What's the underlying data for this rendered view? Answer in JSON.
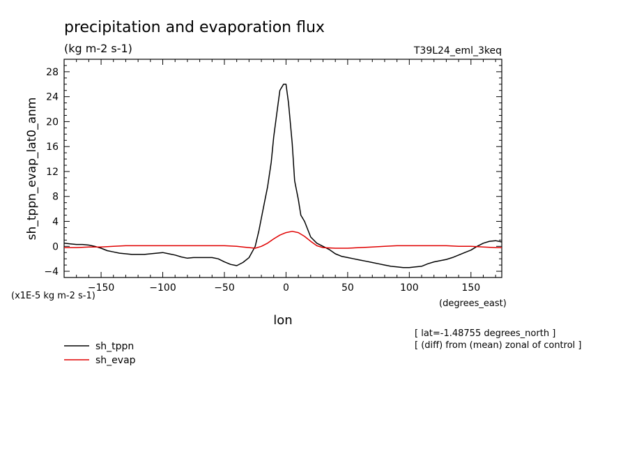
{
  "chart_data": {
    "type": "line",
    "title": "precipitation and evaporation flux",
    "subtitle": "(kg m-2 s-1)",
    "run_label": "T39L24_eml_3keq",
    "ylabel": "sh_tppn_evap_lat0_anm",
    "xlabel": "lon",
    "x_units": "(degrees_east)",
    "y_units": "(x1E-5 kg m-2 s-1)",
    "xlim": [
      -180,
      175
    ],
    "ylim": [
      -5,
      30
    ],
    "xticks": [
      -150,
      -100,
      -50,
      0,
      50,
      100,
      150
    ],
    "yticks": [
      -4,
      0,
      4,
      8,
      12,
      16,
      20,
      24,
      28
    ],
    "notes": [
      "[ lat=-1.48755 degrees_north ]",
      "[ (diff) from (mean) zonal of control ]"
    ],
    "series": [
      {
        "name": "sh_tppn",
        "color": "#000000",
        "x": [
          -180,
          -175,
          -170,
          -165,
          -160,
          -155,
          -150,
          -145,
          -140,
          -135,
          -130,
          -125,
          -120,
          -115,
          -110,
          -105,
          -100,
          -95,
          -90,
          -85,
          -80,
          -75,
          -70,
          -65,
          -60,
          -55,
          -50,
          -45,
          -40,
          -35,
          -30,
          -25,
          -22,
          -20,
          -17,
          -15,
          -12,
          -10,
          -7,
          -5,
          -2,
          0,
          2,
          5,
          7,
          10,
          12,
          15,
          20,
          25,
          30,
          35,
          40,
          45,
          50,
          55,
          60,
          65,
          70,
          75,
          80,
          85,
          90,
          95,
          100,
          105,
          110,
          115,
          120,
          125,
          130,
          135,
          140,
          145,
          150,
          155,
          160,
          165,
          170,
          175
        ],
        "y": [
          0.5,
          0.4,
          0.3,
          0.3,
          0.2,
          0.0,
          -0.3,
          -0.7,
          -0.9,
          -1.1,
          -1.2,
          -1.3,
          -1.3,
          -1.3,
          -1.2,
          -1.1,
          -1.0,
          -1.2,
          -1.4,
          -1.7,
          -1.9,
          -1.8,
          -1.8,
          -1.8,
          -1.8,
          -2.0,
          -2.5,
          -2.9,
          -3.1,
          -2.6,
          -1.8,
          0.0,
          2.5,
          4.5,
          7.5,
          9.5,
          13.5,
          17.5,
          22.0,
          25.0,
          26.0,
          26.0,
          23.0,
          16.5,
          10.5,
          7.5,
          5.0,
          4.0,
          1.5,
          0.5,
          0.0,
          -0.5,
          -1.2,
          -1.6,
          -1.8,
          -2.0,
          -2.2,
          -2.4,
          -2.6,
          -2.8,
          -3.0,
          -3.2,
          -3.3,
          -3.4,
          -3.4,
          -3.3,
          -3.2,
          -2.8,
          -2.5,
          -2.3,
          -2.1,
          -1.8,
          -1.4,
          -1.0,
          -0.6,
          0.0,
          0.5,
          0.8,
          0.9,
          0.7
        ]
      },
      {
        "name": "sh_evap",
        "color": "#e00000",
        "x": [
          -180,
          -170,
          -160,
          -150,
          -140,
          -130,
          -120,
          -110,
          -100,
          -90,
          -80,
          -70,
          -60,
          -50,
          -40,
          -35,
          -30,
          -25,
          -20,
          -15,
          -10,
          -5,
          0,
          5,
          10,
          15,
          20,
          25,
          30,
          40,
          50,
          60,
          70,
          80,
          90,
          100,
          110,
          120,
          130,
          140,
          150,
          160,
          170,
          175
        ],
        "y": [
          -0.2,
          -0.2,
          -0.1,
          -0.1,
          0.0,
          0.1,
          0.1,
          0.1,
          0.1,
          0.1,
          0.1,
          0.1,
          0.1,
          0.1,
          0.0,
          -0.1,
          -0.2,
          -0.3,
          0.0,
          0.5,
          1.2,
          1.8,
          2.2,
          2.4,
          2.2,
          1.6,
          0.8,
          0.1,
          -0.2,
          -0.3,
          -0.3,
          -0.2,
          -0.1,
          0.0,
          0.1,
          0.1,
          0.1,
          0.1,
          0.1,
          0.0,
          0.0,
          -0.1,
          -0.2,
          -0.2
        ]
      }
    ],
    "legend_position": "bottom-left"
  }
}
